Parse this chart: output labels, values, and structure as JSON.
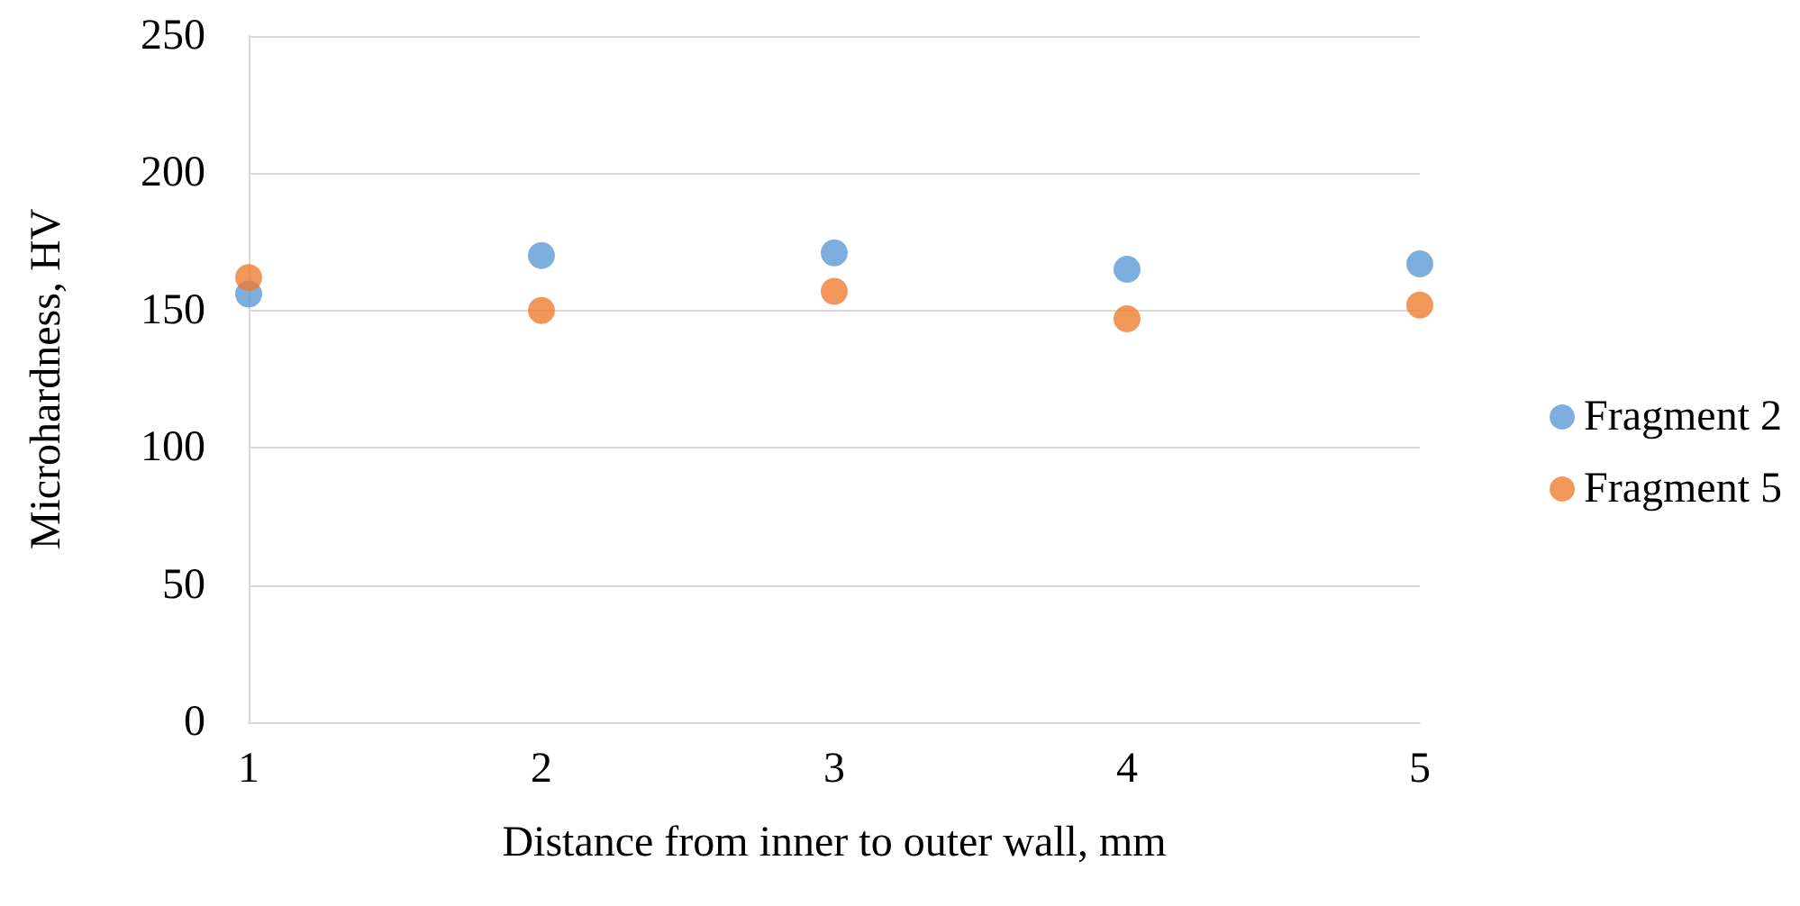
{
  "chart_data": {
    "type": "scatter",
    "xlabel": "Distance from inner to outer wall, mm",
    "ylabel": "Microhardness, HV",
    "x": [
      1,
      2,
      3,
      4,
      5
    ],
    "series": [
      {
        "name": "Fragment 2",
        "color": "#5b9bd5",
        "values": [
          156,
          170,
          171,
          165,
          167
        ]
      },
      {
        "name": "Fragment 5",
        "color": "#ed7d31",
        "values": [
          162,
          150,
          157,
          147,
          152
        ]
      }
    ],
    "xlim": [
      1,
      5
    ],
    "xticks": [
      1,
      2,
      3,
      4,
      5
    ],
    "ylim": [
      0,
      250
    ],
    "yticks": [
      0,
      50,
      100,
      150,
      200,
      250
    ],
    "grid": "y",
    "legend": "right",
    "marker": "circle"
  }
}
